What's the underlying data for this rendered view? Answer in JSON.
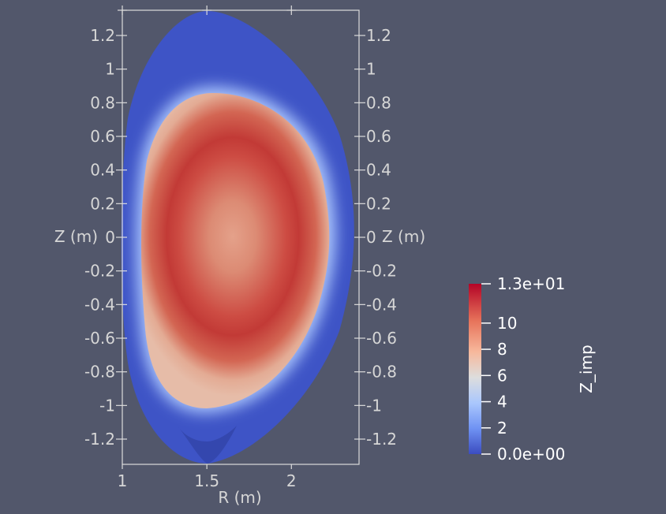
{
  "chart_data": {
    "type": "heatmap",
    "title": "",
    "xlabel": "R (m)",
    "ylabel": "Z (m)",
    "xlim": [
      1.0,
      2.4
    ],
    "ylim": [
      -1.35,
      1.35
    ],
    "x_ticks": [
      "1",
      "1.5",
      "2"
    ],
    "y_ticks": [
      "1.2",
      "1",
      "0.8",
      "0.6",
      "0.4",
      "0.2",
      "0",
      "-0.2",
      "-0.4",
      "-0.6",
      "-0.8",
      "-1",
      "-1.2"
    ],
    "field": "Z_imp",
    "colorbar": {
      "label": "Z_imp",
      "range": [
        0,
        13
      ],
      "colormap": "cool-to-warm",
      "labels": [
        {
          "value": 13,
          "text": "1.3e+01"
        },
        {
          "value": 10,
          "text": "10"
        },
        {
          "value": 8,
          "text": "8"
        },
        {
          "value": 6,
          "text": "6"
        },
        {
          "value": 4,
          "text": "4"
        },
        {
          "value": 2,
          "text": "2"
        },
        {
          "value": 0,
          "text": "0.0e+00"
        }
      ]
    },
    "field_summary": {
      "core_value": 7,
      "ring_peak_value": 12,
      "edge_value": 0,
      "x_point": [
        1.5,
        -1.3
      ]
    }
  },
  "colors": {
    "background": "#52576b",
    "axes": "#dcdcdc",
    "low": "#3b4cc0",
    "mid": "#dddddd",
    "high": "#b40426"
  }
}
